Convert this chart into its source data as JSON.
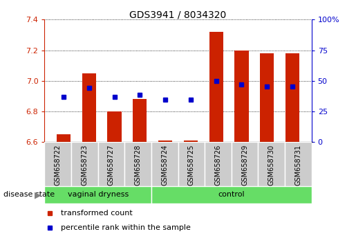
{
  "title": "GDS3941 / 8034320",
  "samples": [
    "GSM658722",
    "GSM658723",
    "GSM658727",
    "GSM658728",
    "GSM658724",
    "GSM658725",
    "GSM658726",
    "GSM658729",
    "GSM658730",
    "GSM658731"
  ],
  "red_values": [
    6.65,
    7.05,
    6.8,
    6.88,
    6.61,
    6.61,
    7.32,
    7.2,
    7.18,
    7.18
  ],
  "blue_values": [
    6.895,
    6.955,
    6.895,
    6.91,
    6.875,
    6.875,
    7.0,
    6.975,
    6.965,
    6.965
  ],
  "ylim_left": [
    6.6,
    7.4
  ],
  "ylim_right": [
    0,
    100
  ],
  "yticks_left": [
    6.6,
    6.8,
    7.0,
    7.2,
    7.4
  ],
  "yticks_right": [
    0,
    25,
    50,
    75,
    100
  ],
  "ytick_labels_right": [
    "0",
    "25",
    "50",
    "75",
    "100%"
  ],
  "bar_color": "#CC2200",
  "dot_color": "#0000CC",
  "bar_bottom": 6.6,
  "label_transformed": "transformed count",
  "label_percentile": "percentile rank within the sample",
  "group_label": "disease state",
  "vaginal_label": "vaginal dryness",
  "control_label": "control",
  "n_vaginal": 4,
  "n_control": 6,
  "bar_width": 0.55,
  "gray_box_color": "#CCCCCC",
  "green_color": "#66DD66",
  "left_axis_color": "#CC2200",
  "right_axis_color": "#0000CC"
}
